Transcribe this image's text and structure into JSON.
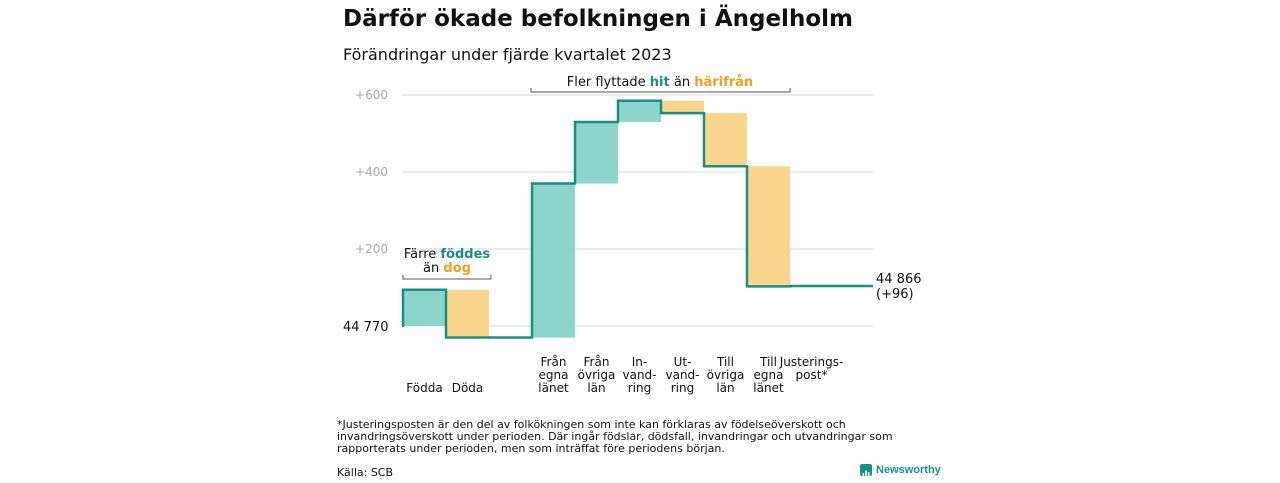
{
  "header": {
    "title": "Därför ökade befolkningen i Ängelholm",
    "subtitle": "Förändringar under fjärde kvartalet 2023"
  },
  "chart_data": {
    "type": "waterfall",
    "start_value": 44770,
    "start_label": "44  770",
    "end_value": 44866,
    "end_label_line1": "44 866",
    "end_label_line2": "(+96)",
    "y_ticks": [
      "+200",
      "+400",
      "+600"
    ],
    "y_tick_values": [
      200,
      400,
      600
    ],
    "ylim": [
      -30,
      650
    ],
    "grid": true,
    "steps": [
      {
        "label": [
          "Födda"
        ],
        "delta": 94
      },
      {
        "label": [
          "Döda"
        ],
        "delta": -124
      },
      {
        "label": [],
        "delta": 0
      },
      {
        "label": [
          "Från",
          "egna",
          "länet"
        ],
        "delta": 400
      },
      {
        "label": [
          "Från",
          "övriga",
          "län"
        ],
        "delta": 160
      },
      {
        "label": [
          "In-",
          "vand-",
          "ring"
        ],
        "delta": 55
      },
      {
        "label": [
          "Ut-",
          "vand-",
          "ring"
        ],
        "delta": -32
      },
      {
        "label": [
          "Till",
          "övriga",
          "län"
        ],
        "delta": -138
      },
      {
        "label": [
          "Till",
          "egna",
          "länet"
        ],
        "delta": -312
      },
      {
        "label": [
          "Justerings-",
          "post*"
        ],
        "delta": 1
      }
    ],
    "annotations": {
      "left": {
        "line1": [
          "Färre ",
          "föddes"
        ],
        "line2": [
          "än ",
          "dog"
        ]
      },
      "right": [
        "Fler flyttade ",
        "hit",
        " än ",
        "härifrån"
      ]
    },
    "colors": {
      "increase": "#8dd4cb",
      "decrease": "#fad58e",
      "line": "#1a8f83",
      "text_teal": "#1a8f83",
      "text_orange": "#f0a020",
      "grid": "#d9d9d9",
      "tick": "#aaaaaa"
    }
  },
  "footnote": "*Justeringsposten är den del av folkökningen som inte kan förklaras av födelseöverskott och invandringsöverskott under perioden. Där ingår födslar, dödsfall, invandringar och utvandringar som rapporterats under perioden, men som inträffat före periodens början.",
  "source": "Källa: SCB",
  "brand": {
    "name": "Newsworthy",
    "icon": "bar-chart-icon"
  }
}
